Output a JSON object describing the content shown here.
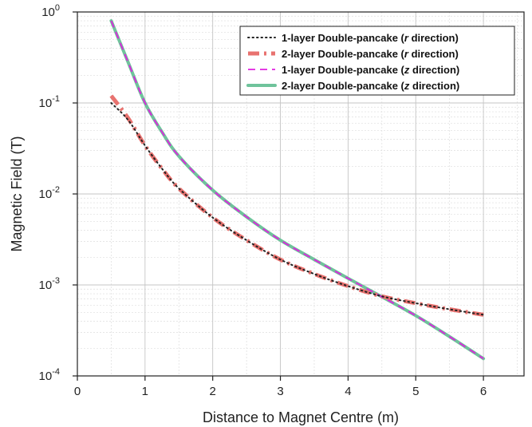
{
  "chart_data": {
    "type": "line",
    "title": "",
    "xlabel": "Distance to Magnet Centre (m)",
    "ylabel": "Magnetic Field (T)",
    "xlim": [
      0,
      6.6
    ],
    "ylim": [
      0.0001,
      1
    ],
    "yscale": "log",
    "grid": true,
    "legend_position": "top-right",
    "x_ticks": [
      {
        "value": 0,
        "label": "0"
      },
      {
        "value": 1,
        "label": "1"
      },
      {
        "value": 2,
        "label": "2"
      },
      {
        "value": 3,
        "label": "3"
      },
      {
        "value": 4,
        "label": "4"
      },
      {
        "value": 5,
        "label": "5"
      },
      {
        "value": 6,
        "label": "6"
      }
    ],
    "y_ticks": [
      {
        "value": 0.0001,
        "base": "10",
        "exp": "-4"
      },
      {
        "value": 0.001,
        "base": "10",
        "exp": "-3"
      },
      {
        "value": 0.01,
        "base": "10",
        "exp": "-2"
      },
      {
        "value": 0.1,
        "base": "10",
        "exp": "-1"
      },
      {
        "value": 1,
        "base": "10",
        "exp": "0"
      }
    ],
    "series": [
      {
        "name_parts": [
          "1-layer Double-pancake (",
          "r",
          " direction)"
        ],
        "color": "#222222",
        "style": "dotted",
        "x": [
          0.5,
          0.75,
          1.0,
          1.25,
          1.5,
          2.0,
          2.5,
          3.0,
          3.5,
          4.0,
          4.5,
          5.0,
          5.5,
          6.0
        ],
        "y": [
          0.1,
          0.065,
          0.034,
          0.019,
          0.0115,
          0.0055,
          0.0031,
          0.0019,
          0.00132,
          0.00097,
          0.00075,
          0.00063,
          0.00054,
          0.00047
        ]
      },
      {
        "name_parts": [
          "2-layer Double-pancake (",
          "r",
          " direction)"
        ],
        "color": "#e8726f",
        "style": "dashdot",
        "x": [
          0.5,
          0.75,
          1.0,
          1.25,
          1.5,
          2.0,
          2.5,
          3.0,
          3.5,
          4.0,
          4.5,
          5.0,
          5.5,
          6.0
        ],
        "y": [
          0.12,
          0.068,
          0.034,
          0.019,
          0.0115,
          0.0055,
          0.0031,
          0.0019,
          0.00132,
          0.00097,
          0.00075,
          0.00063,
          0.00054,
          0.00047
        ]
      },
      {
        "name_parts": [
          "1-layer Double-pancake (",
          "z",
          " direction)"
        ],
        "color": "#e020e0",
        "style": "dashed",
        "x": [
          0.5,
          0.75,
          1.0,
          1.25,
          1.5,
          2.0,
          2.5,
          3.0,
          3.5,
          4.0,
          4.5,
          5.0,
          5.5,
          6.0
        ],
        "y": [
          0.8,
          0.28,
          0.1,
          0.048,
          0.026,
          0.011,
          0.0056,
          0.0031,
          0.0019,
          0.00118,
          0.00074,
          0.00046,
          0.00027,
          0.000155
        ]
      },
      {
        "name_parts": [
          "2-layer Double-pancake (",
          "z",
          " direction)"
        ],
        "color": "#6fc39b",
        "style": "solid",
        "x": [
          0.5,
          0.75,
          1.0,
          1.25,
          1.5,
          2.0,
          2.5,
          3.0,
          3.5,
          4.0,
          4.5,
          5.0,
          5.5,
          6.0
        ],
        "y": [
          0.8,
          0.28,
          0.1,
          0.048,
          0.026,
          0.011,
          0.0056,
          0.0031,
          0.0019,
          0.00118,
          0.00074,
          0.00046,
          0.00027,
          0.000155
        ]
      }
    ]
  }
}
